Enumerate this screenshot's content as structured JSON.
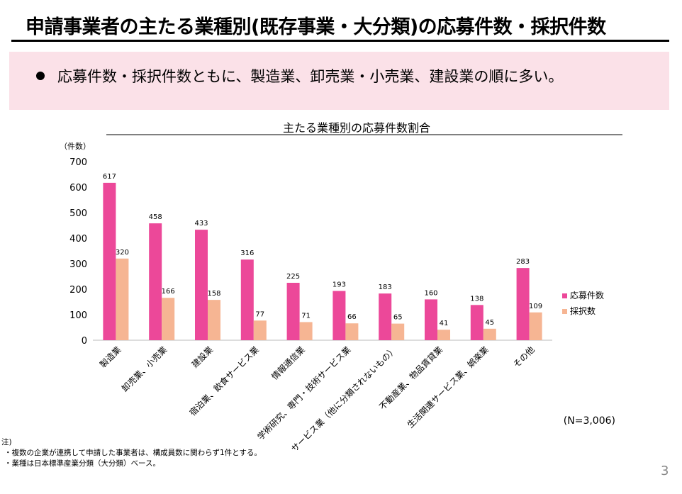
{
  "header": {
    "title": "申請事業者の主たる業種別(既存事業・大分類)の応募件数・採択件数",
    "summary": "応募件数・採択件数ともに、製造業、卸売業・小売業、建設業の順に多い。"
  },
  "chart_data": {
    "type": "bar",
    "title": "主たる業種別の応募件数割合",
    "ylabel": "（件数）",
    "ylim": [
      0,
      700
    ],
    "yticks": [
      0,
      100,
      200,
      300,
      400,
      500,
      600,
      700
    ],
    "categories": [
      "製造業",
      "卸売業、小売業",
      "建設業",
      "宿泊業、飲食サービス業",
      "情報通信業",
      "学術研究、専門・技術サービス業",
      "サービス業（他に分類されないもの）",
      "不動産業、物品賃貸業",
      "生活関連サービス業、娯楽業",
      "その他"
    ],
    "series": [
      {
        "name": "応募件数",
        "color": "#ec4899",
        "values": [
          617,
          458,
          433,
          316,
          225,
          193,
          183,
          160,
          138,
          283
        ]
      },
      {
        "name": "採択数",
        "color": "#f6b593",
        "values": [
          320,
          166,
          158,
          77,
          71,
          66,
          65,
          41,
          45,
          109
        ]
      }
    ],
    "legend": "right",
    "note_n": "(N=3,006)"
  },
  "notes": {
    "heading": "注)",
    "items": [
      "・複数の企業が連携して申請した事業者は、構成員数に関わらず1件とする。",
      "・業種は日本標準産業分類（大分類）ベース。"
    ]
  },
  "page_number": "3"
}
